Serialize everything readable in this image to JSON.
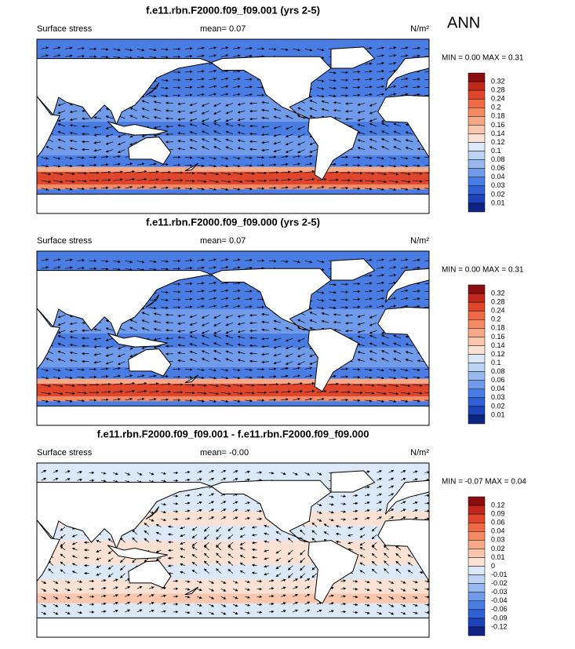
{
  "season": "ANN",
  "panels": [
    {
      "title": "f.e11.rbn.F2000.f09_f09.001 (yrs 2-5)",
      "variable": "Surface stress",
      "mean": "mean=  0.07",
      "units": "N/m²",
      "minmax": "MIN =  0.00 MAX =  0.31",
      "colorbar": {
        "labels": [
          "0.32",
          "0.28",
          "0.24",
          "0.2",
          "0.18",
          "0.16",
          "0.14",
          "0.12",
          "0.1",
          "0.08",
          "0.06",
          "0.04",
          "0.03",
          "0.02",
          "0.01"
        ],
        "colors": [
          "#8b0e0e",
          "#c1271a",
          "#e0462b",
          "#ef6a45",
          "#f48a64",
          "#f7a987",
          "#f9c6ae",
          "#fbe1d3",
          "#dbe8f7",
          "#bcd3f3",
          "#97b9ee",
          "#6f9bea",
          "#4a7de4",
          "#2f60d6",
          "#1d43b8",
          "#0e2483"
        ]
      }
    },
    {
      "title": "f.e11.rbn.F2000.f09_f09.000 (yrs 2-5)",
      "variable": "Surface stress",
      "mean": "mean=  0.07",
      "units": "N/m²",
      "minmax": "MIN =  0.00 MAX =  0.31",
      "colorbar": {
        "labels": [
          "0.32",
          "0.28",
          "0.24",
          "0.2",
          "0.18",
          "0.16",
          "0.14",
          "0.12",
          "0.1",
          "0.08",
          "0.06",
          "0.04",
          "0.03",
          "0.02",
          "0.01"
        ],
        "colors": [
          "#8b0e0e",
          "#c1271a",
          "#e0462b",
          "#ef6a45",
          "#f48a64",
          "#f7a987",
          "#f9c6ae",
          "#fbe1d3",
          "#dbe8f7",
          "#bcd3f3",
          "#97b9ee",
          "#6f9bea",
          "#4a7de4",
          "#2f60d6",
          "#1d43b8",
          "#0e2483"
        ]
      }
    },
    {
      "title": "f.e11.rbn.F2000.f09_f09.001 - f.e11.rbn.F2000.f09_f09.000",
      "variable": "Surface stress",
      "mean": "mean=  -0.00",
      "units": "N/m²",
      "minmax": "MIN =  -0.07 MAX =  0.04",
      "colorbar": {
        "labels": [
          "0.12",
          "0.09",
          "0.06",
          "0.04",
          "0.03",
          "0.02",
          "0.01",
          "0",
          "-0.01",
          "-0.02",
          "-0.03",
          "-0.04",
          "-0.06",
          "-0.09",
          "-0.12"
        ],
        "colors": [
          "#8b0e0e",
          "#c1271a",
          "#e0462b",
          "#ef6a45",
          "#f48a64",
          "#f7a987",
          "#f9c6ae",
          "#fbe1d3",
          "#dbe8f7",
          "#bcd3f3",
          "#97b9ee",
          "#6f9bea",
          "#4a7de4",
          "#2f60d6",
          "#1d43b8",
          "#0e2483"
        ]
      }
    }
  ]
}
